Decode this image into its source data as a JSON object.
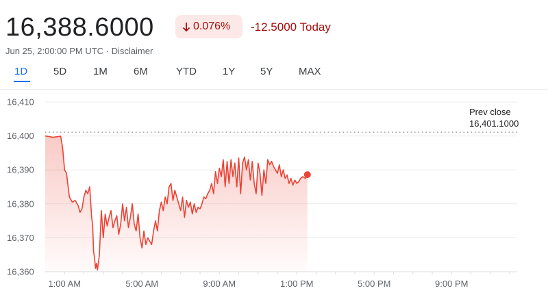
{
  "header": {
    "price": "16,388.6000",
    "change_pct": "0.076%",
    "change_abs": "-12.5000 Today",
    "timestamp": "Jun 25, 2:00:00 PM UTC · Disclaimer",
    "colors": {
      "negative": "#a50e0e",
      "negative_bg": "#fce8e6"
    },
    "change_direction_icon": "arrow-down-icon"
  },
  "tabs": [
    {
      "label": "1D",
      "active": true
    },
    {
      "label": "5D",
      "active": false
    },
    {
      "label": "1M",
      "active": false
    },
    {
      "label": "6M",
      "active": false
    },
    {
      "label": "YTD",
      "active": false
    },
    {
      "label": "1Y",
      "active": false
    },
    {
      "label": "5Y",
      "active": false
    },
    {
      "label": "MAX",
      "active": false
    }
  ],
  "chart": {
    "prev_close_label": "Prev close",
    "prev_close_value": "16,401.1000",
    "line_color": "#ea4335"
  },
  "chart_data": {
    "type": "area",
    "y_ticks": [
      16360,
      16370,
      16380,
      16390,
      16400,
      16410
    ],
    "y_tick_labels": [
      "16,360",
      "16,370",
      "16,380",
      "16,390",
      "16,400",
      "16,410"
    ],
    "ylim": [
      16360,
      16410
    ],
    "x_ticks": [
      "1:00 AM",
      "5:00 AM",
      "9:00 AM",
      "1:00 PM",
      "5:00 PM",
      "9:00 PM"
    ],
    "x_tick_hours": [
      1,
      5,
      9,
      13,
      17,
      21
    ],
    "xlim_hours": [
      0,
      24
    ],
    "prev_close": 16401.1,
    "grid": true,
    "series": [
      {
        "points": [
          [
            0.0,
            16400.0
          ],
          [
            0.4,
            16399.6
          ],
          [
            0.8,
            16399.9
          ],
          [
            0.9,
            16396.5
          ],
          [
            1.0,
            16390.0
          ],
          [
            1.1,
            16389.0
          ],
          [
            1.25,
            16382.0
          ],
          [
            1.4,
            16380.5
          ],
          [
            1.55,
            16381.0
          ],
          [
            1.7,
            16379.5
          ],
          [
            1.8,
            16377.5
          ],
          [
            1.9,
            16378.5
          ],
          [
            2.0,
            16382.0
          ],
          [
            2.1,
            16384.0
          ],
          [
            2.2,
            16383.0
          ],
          [
            2.3,
            16385.0
          ],
          [
            2.4,
            16376.0
          ],
          [
            2.45,
            16374.0
          ],
          [
            2.5,
            16366.0
          ],
          [
            2.55,
            16364.0
          ],
          [
            2.6,
            16361.0
          ],
          [
            2.65,
            16362.5
          ],
          [
            2.7,
            16360.5
          ],
          [
            2.8,
            16365.0
          ],
          [
            2.9,
            16378.0
          ],
          [
            3.0,
            16370.0
          ],
          [
            3.1,
            16377.0
          ],
          [
            3.2,
            16373.5
          ],
          [
            3.3,
            16376.0
          ],
          [
            3.4,
            16378.0
          ],
          [
            3.5,
            16373.0
          ],
          [
            3.6,
            16375.0
          ],
          [
            3.7,
            16376.5
          ],
          [
            3.8,
            16371.0
          ],
          [
            3.9,
            16374.0
          ],
          [
            4.0,
            16380.0
          ],
          [
            4.1,
            16375.0
          ],
          [
            4.2,
            16379.0
          ],
          [
            4.3,
            16373.0
          ],
          [
            4.4,
            16376.0
          ],
          [
            4.5,
            16380.0
          ],
          [
            4.6,
            16374.0
          ],
          [
            4.7,
            16372.0
          ],
          [
            4.8,
            16377.0
          ],
          [
            4.9,
            16370.0
          ],
          [
            5.0,
            16367.0
          ],
          [
            5.1,
            16372.0
          ],
          [
            5.2,
            16368.0
          ],
          [
            5.3,
            16370.0
          ],
          [
            5.4,
            16369.0
          ],
          [
            5.5,
            16368.0
          ],
          [
            5.6,
            16372.0
          ],
          [
            5.7,
            16375.0
          ],
          [
            5.8,
            16372.0
          ],
          [
            5.9,
            16378.0
          ],
          [
            6.0,
            16380.5
          ],
          [
            6.1,
            16378.0
          ],
          [
            6.2,
            16382.0
          ],
          [
            6.3,
            16380.0
          ],
          [
            6.4,
            16385.0
          ],
          [
            6.5,
            16386.0
          ],
          [
            6.6,
            16381.0
          ],
          [
            6.7,
            16384.0
          ],
          [
            6.8,
            16382.0
          ],
          [
            6.9,
            16380.0
          ],
          [
            7.0,
            16378.0
          ],
          [
            7.1,
            16382.0
          ],
          [
            7.2,
            16376.0
          ],
          [
            7.3,
            16381.0
          ],
          [
            7.4,
            16379.0
          ],
          [
            7.5,
            16380.5
          ],
          [
            7.6,
            16377.0
          ],
          [
            7.7,
            16380.0
          ],
          [
            7.8,
            16377.5
          ],
          [
            7.9,
            16379.0
          ],
          [
            8.0,
            16378.5
          ],
          [
            8.1,
            16380.0
          ],
          [
            8.2,
            16382.0
          ],
          [
            8.3,
            16381.5
          ],
          [
            8.4,
            16383.0
          ],
          [
            8.5,
            16384.0
          ],
          [
            8.6,
            16386.0
          ],
          [
            8.7,
            16383.0
          ],
          [
            8.8,
            16389.5
          ],
          [
            8.9,
            16386.0
          ],
          [
            9.0,
            16390.5
          ],
          [
            9.1,
            16388.0
          ],
          [
            9.2,
            16393.0
          ],
          [
            9.3,
            16385.0
          ],
          [
            9.4,
            16392.5
          ],
          [
            9.5,
            16386.0
          ],
          [
            9.6,
            16393.0
          ],
          [
            9.7,
            16388.0
          ],
          [
            9.8,
            16392.0
          ],
          [
            9.9,
            16385.0
          ],
          [
            10.0,
            16393.5
          ],
          [
            10.1,
            16383.0
          ],
          [
            10.2,
            16392.0
          ],
          [
            10.3,
            16393.8
          ],
          [
            10.4,
            16390.0
          ],
          [
            10.5,
            16393.0
          ],
          [
            10.6,
            16387.0
          ],
          [
            10.7,
            16392.5
          ],
          [
            10.8,
            16386.0
          ],
          [
            10.9,
            16383.0
          ],
          [
            11.0,
            16392.0
          ],
          [
            11.1,
            16389.0
          ],
          [
            11.2,
            16382.5
          ],
          [
            11.3,
            16390.0
          ],
          [
            11.4,
            16386.0
          ],
          [
            11.5,
            16393.0
          ],
          [
            11.6,
            16391.5
          ],
          [
            11.7,
            16392.5
          ],
          [
            11.8,
            16391.0
          ],
          [
            11.9,
            16390.0
          ],
          [
            12.0,
            16389.0
          ],
          [
            12.1,
            16391.5
          ],
          [
            12.2,
            16388.0
          ],
          [
            12.3,
            16390.0
          ],
          [
            12.4,
            16387.5
          ],
          [
            12.5,
            16388.5
          ],
          [
            12.6,
            16386.0
          ],
          [
            12.7,
            16387.5
          ],
          [
            12.8,
            16385.5
          ],
          [
            12.9,
            16387.0
          ],
          [
            13.0,
            16386.0
          ],
          [
            13.1,
            16386.5
          ],
          [
            13.2,
            16387.5
          ],
          [
            13.3,
            16388.0
          ],
          [
            13.45,
            16387.5
          ],
          [
            13.55,
            16388.6
          ]
        ],
        "last_point": [
          13.55,
          16388.6
        ]
      }
    ]
  }
}
